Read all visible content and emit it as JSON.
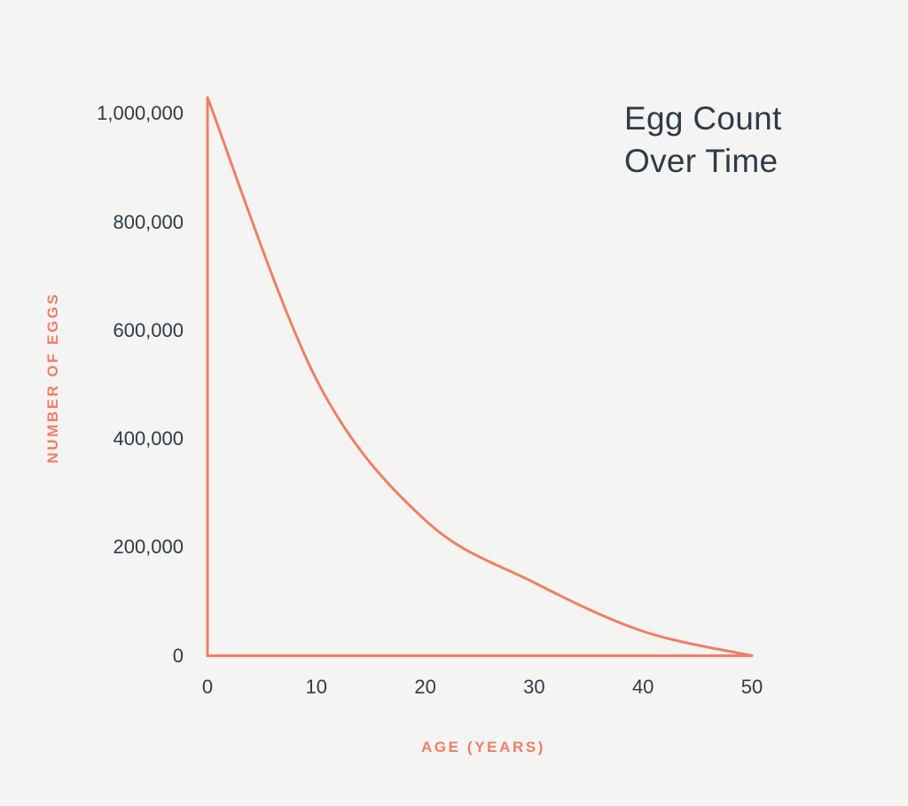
{
  "page": {
    "background_color": "#f4f4f2"
  },
  "chart_data": {
    "type": "line",
    "title": "Egg Count Over Time",
    "title_lines": [
      "Egg Count",
      "Over Time"
    ],
    "xlabel": "AGE (YEARS)",
    "ylabel": "NUMBER OF EGGS",
    "x": [
      0,
      10,
      20,
      30,
      40,
      50
    ],
    "x_tick_labels": [
      "0",
      "10",
      "20",
      "30",
      "40",
      "50"
    ],
    "y_ticks": [
      0,
      200000,
      400000,
      600000,
      800000,
      1000000
    ],
    "y_tick_labels": [
      "0",
      "200,000",
      "400,000",
      "600,000",
      "800,000",
      "1,000,000"
    ],
    "series": [
      {
        "name": "Egg count",
        "values": [
          1000000,
          510000,
          250000,
          135000,
          45000,
          0
        ]
      }
    ],
    "xlim": [
      0,
      50
    ],
    "ylim": [
      0,
      1030000
    ],
    "grid": false,
    "legend": "none",
    "curve_anchored_to_axis_top": true,
    "colors": {
      "accent": "#ef7f66",
      "ink": "#2d3c49"
    }
  }
}
